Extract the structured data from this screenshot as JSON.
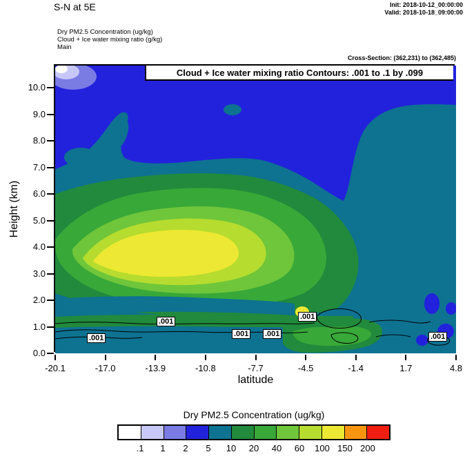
{
  "header": {
    "title": "S-N at 5E",
    "init_line": "Init: 2018-10-12_00:00:00",
    "valid_line": "Valid: 2018-10-18_09:00:00",
    "field_lines": [
      "Dry PM2.5 Concentration (ug/kg)",
      "Cloud + Ice water mixing ratio (g/kg)",
      "Main"
    ],
    "cross_section": "Cross-Section: (362,231) to (362,485)"
  },
  "plot": {
    "banner": "Cloud + Ice water mixing ratio Contours: .001 to .1 by .099",
    "ylabel": "Height (km)",
    "xlabel": "latitude",
    "ytick_labels": [
      "0.0",
      "1.0",
      "2.0",
      "3.0",
      "4.0",
      "5.0",
      "6.0",
      "7.0",
      "8.0",
      "9.0",
      "10.0"
    ],
    "xtick_labels": [
      "-20.1",
      "-17.0",
      "-13.9",
      "-10.8",
      "-7.7",
      "-4.5",
      "-1.4",
      "1.7",
      "4.8"
    ],
    "contour_labels": [
      ".001",
      ".001",
      ".001",
      ".001",
      ".001",
      ".001"
    ]
  },
  "colorbar": {
    "title": "Dry PM2.5 Concentration  (ug/kg)",
    "tick_labels": [
      ".1",
      "1",
      "2",
      "5",
      "10",
      "20",
      "40",
      "60",
      "100",
      "150",
      "200"
    ],
    "cell_colors": [
      "#ffffff",
      "#c8c8f8",
      "#7b7be4",
      "#2222dc",
      "#0e7291",
      "#218a3c",
      "#38a838",
      "#6fc63a",
      "#b5dc2e",
      "#ede833",
      "#f79511",
      "#f01e11"
    ]
  },
  "chart_data": {
    "type": "heatmap",
    "title": "Dry PM2.5 Concentration cross-section, S-N at 5E",
    "xlabel": "latitude",
    "ylabel": "Height (km)",
    "xlim": [
      -20.1,
      4.8
    ],
    "ylim": [
      0,
      10.8
    ],
    "x": [
      -20.1,
      -17.0,
      -13.9,
      -10.8,
      -7.7,
      -4.5,
      -1.4,
      1.7,
      4.8
    ],
    "y_height_km": [
      0,
      1,
      2,
      3,
      4,
      5,
      6,
      7,
      8,
      9,
      10
    ],
    "values_ug_kg": [
      [
        15,
        20,
        20,
        20,
        25,
        30,
        25,
        15,
        10
      ],
      [
        15,
        20,
        25,
        25,
        25,
        30,
        25,
        15,
        10
      ],
      [
        20,
        30,
        35,
        35,
        30,
        30,
        25,
        15,
        15
      ],
      [
        25,
        90,
        110,
        100,
        70,
        45,
        25,
        15,
        15
      ],
      [
        20,
        80,
        120,
        90,
        60,
        30,
        25,
        15,
        15
      ],
      [
        15,
        25,
        45,
        45,
        30,
        25,
        20,
        15,
        15
      ],
      [
        8,
        15,
        25,
        25,
        15,
        15,
        15,
        15,
        15
      ],
      [
        5,
        15,
        15,
        15,
        8,
        8,
        15,
        15,
        15
      ],
      [
        5,
        8,
        15,
        8,
        5,
        5,
        15,
        15,
        15
      ],
      [
        5,
        5,
        5,
        5,
        5,
        5,
        8,
        15,
        15
      ],
      [
        1,
        5,
        5,
        5,
        5,
        5,
        5,
        5,
        5
      ]
    ],
    "fill_boundaries": [
      0.1,
      1,
      2,
      5,
      10,
      20,
      40,
      60,
      100,
      150,
      200
    ],
    "fill_colors": [
      "#ffffff",
      "#c8c8f8",
      "#7b7be4",
      "#2222dc",
      "#0e7291",
      "#218a3c",
      "#38a838",
      "#6fc63a",
      "#b5dc2e",
      "#ede833",
      "#f79511",
      "#f01e11"
    ],
    "overlay_contours": {
      "variable": "Cloud + Ice water mixing ratio (g/kg)",
      "levels": ".001 to .1 by .099",
      "labeled_value": ".001",
      "location": "thin wavy contours below ~1.5 km across most latitudes"
    },
    "legend_position": "bottom",
    "grid": false
  }
}
